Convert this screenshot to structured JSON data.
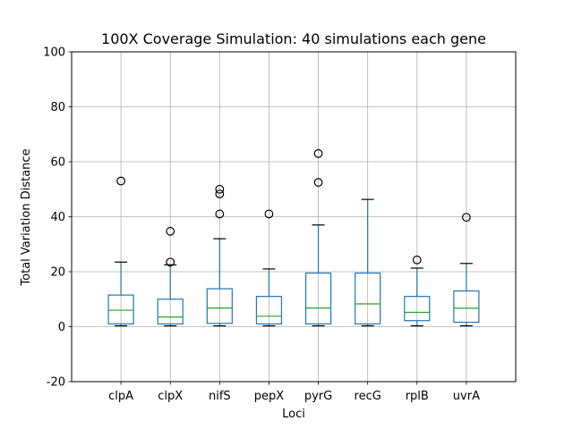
{
  "chart_data": {
    "type": "box",
    "title": "100X Coverage Simulation: 40 simulations each gene",
    "xlabel": "Loci",
    "ylabel": "Total Variation Distance",
    "ylim": [
      -20,
      100
    ],
    "yticks": [
      -20,
      0,
      20,
      40,
      60,
      80,
      100
    ],
    "grid": true,
    "box_color": "#1f77b4",
    "median_color": "#2ca02c",
    "whisker_cap_color": "#000000",
    "outlier_color": "#000000",
    "categories": [
      "clpA",
      "clpX",
      "nifS",
      "pepX",
      "pyrG",
      "recG",
      "rplB",
      "uvrA"
    ],
    "boxes": [
      {
        "label": "clpA",
        "whislo": 0.3,
        "q1": 1.0,
        "med": 6.0,
        "q3": 11.5,
        "whishi": 23.5,
        "fliers": [
          53
        ]
      },
      {
        "label": "clpX",
        "whislo": 0.3,
        "q1": 1.0,
        "med": 3.5,
        "q3": 10.0,
        "whishi": 22.5,
        "fliers": [
          23.5,
          34.7
        ]
      },
      {
        "label": "nifS",
        "whislo": 0.3,
        "q1": 1.2,
        "med": 6.8,
        "q3": 13.8,
        "whishi": 32.0,
        "fliers": [
          41.0,
          48.3,
          50.0
        ]
      },
      {
        "label": "pepX",
        "whislo": 0.3,
        "q1": 1.0,
        "med": 3.8,
        "q3": 11.0,
        "whishi": 21.0,
        "fliers": [
          41.0
        ]
      },
      {
        "label": "pyrG",
        "whislo": 0.3,
        "q1": 1.0,
        "med": 6.8,
        "q3": 19.5,
        "whishi": 37.0,
        "fliers": [
          52.5,
          63.0
        ]
      },
      {
        "label": "recG",
        "whislo": 0.3,
        "q1": 1.0,
        "med": 8.3,
        "q3": 19.5,
        "whishi": 46.3,
        "fliers": []
      },
      {
        "label": "rplB",
        "whislo": 0.3,
        "q1": 2.2,
        "med": 5.2,
        "q3": 11.0,
        "whishi": 21.3,
        "fliers": [
          24.3
        ]
      },
      {
        "label": "uvrA",
        "whislo": 0.3,
        "q1": 1.6,
        "med": 6.7,
        "q3": 13.0,
        "whishi": 23.0,
        "fliers": [
          39.8
        ]
      }
    ]
  }
}
